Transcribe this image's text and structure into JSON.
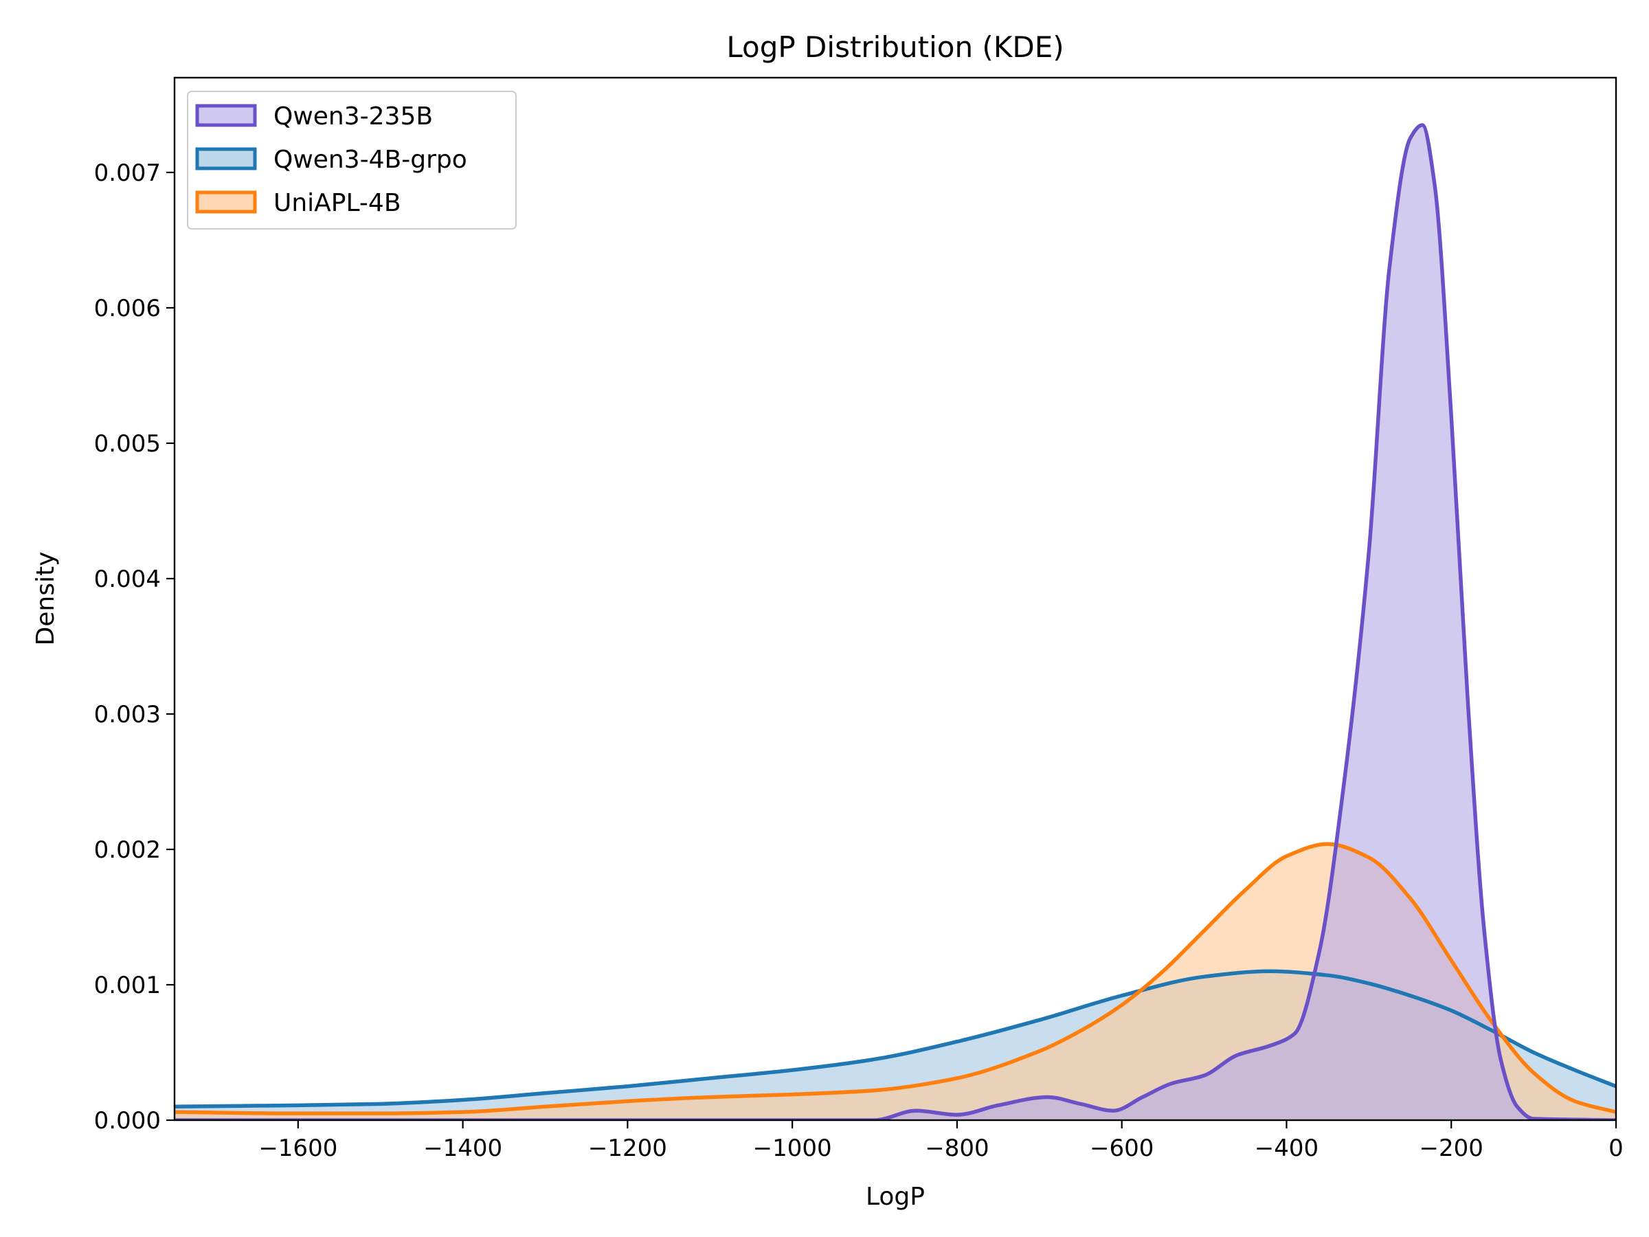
{
  "chart_data": {
    "type": "area",
    "title": "LogP Distribution (KDE)",
    "xlabel": "LogP",
    "ylabel": "Density",
    "xlim": [
      -1750,
      0
    ],
    "ylim": [
      0,
      0.0077
    ],
    "grid": false,
    "legend_position": "top-left",
    "xticks": [
      -1600,
      -1400,
      -1200,
      -1000,
      -800,
      -600,
      -400,
      -200,
      0
    ],
    "xtick_labels": [
      "−1600",
      "−1400",
      "−1200",
      "−1000",
      "−800",
      "−600",
      "−400",
      "−200",
      "0"
    ],
    "yticks": [
      0,
      0.001,
      0.002,
      0.003,
      0.004,
      0.005,
      0.006,
      0.007
    ],
    "ytick_labels": [
      "0.000",
      "0.001",
      "0.002",
      "0.003",
      "0.004",
      "0.005",
      "0.006",
      "0.007"
    ],
    "series": [
      {
        "name": "Qwen3-4B-grpo",
        "color": "#1f77b4",
        "fill_color": "#a6c8e3",
        "x": [
          -1750,
          -1600,
          -1500,
          -1400,
          -1300,
          -1200,
          -1100,
          -1000,
          -900,
          -800,
          -700,
          -600,
          -500,
          -420,
          -350,
          -300,
          -250,
          -200,
          -150,
          -100,
          -50,
          0
        ],
        "y": [
          0.0001,
          0.00011,
          0.00012,
          0.00015,
          0.0002,
          0.00025,
          0.00031,
          0.00037,
          0.00045,
          0.00058,
          0.00074,
          0.00092,
          0.00106,
          0.0011,
          0.00107,
          0.00101,
          0.00092,
          0.00081,
          0.00066,
          0.0005,
          0.00037,
          0.00025
        ]
      },
      {
        "name": "UniAPL-4B",
        "color": "#ff7f0e",
        "fill_color": "#ffc999",
        "x": [
          -1750,
          -1600,
          -1500,
          -1400,
          -1300,
          -1200,
          -1100,
          -1000,
          -900,
          -800,
          -700,
          -650,
          -600,
          -550,
          -500,
          -450,
          -400,
          -350,
          -300,
          -250,
          -200,
          -150,
          -100,
          -50,
          0
        ],
        "y": [
          6e-05,
          5e-05,
          5e-05,
          6e-05,
          0.0001,
          0.00014,
          0.00017,
          0.00019,
          0.00022,
          0.00031,
          0.00051,
          0.00066,
          0.00085,
          0.0011,
          0.0014,
          0.0017,
          0.00195,
          0.00204,
          0.00194,
          0.00164,
          0.00118,
          0.00072,
          0.00035,
          0.00014,
          6e-05
        ]
      },
      {
        "name": "Qwen3-235B",
        "color": "#6a51c8",
        "fill_color": "#b7abe6",
        "x": [
          -1750,
          -900,
          -850,
          -800,
          -750,
          -690,
          -650,
          -610,
          -575,
          -540,
          -500,
          -460,
          -420,
          -390,
          -360,
          -330,
          -300,
          -275,
          -250,
          -235,
          -220,
          -200,
          -180,
          -160,
          -140,
          -120,
          -100,
          0
        ],
        "y": [
          0,
          0,
          7e-05,
          4e-05,
          0.00011,
          0.00017,
          0.00012,
          7e-05,
          0.00017,
          0.00027,
          0.00033,
          0.00048,
          0.00055,
          0.00064,
          0.00125,
          0.0025,
          0.0042,
          0.0063,
          0.00725,
          0.00735,
          0.0069,
          0.0052,
          0.0031,
          0.0014,
          0.00045,
          0.0001,
          1e-05,
          0
        ]
      }
    ],
    "legend": [
      {
        "name": "Qwen3-235B",
        "color": "#6a51c8",
        "fill_color": "#d0c9ef"
      },
      {
        "name": "Qwen3-4B-grpo",
        "color": "#1f77b4",
        "fill_color": "#bcd6ea"
      },
      {
        "name": "UniAPL-4B",
        "color": "#ff7f0e",
        "fill_color": "#ffd7b5"
      }
    ]
  }
}
